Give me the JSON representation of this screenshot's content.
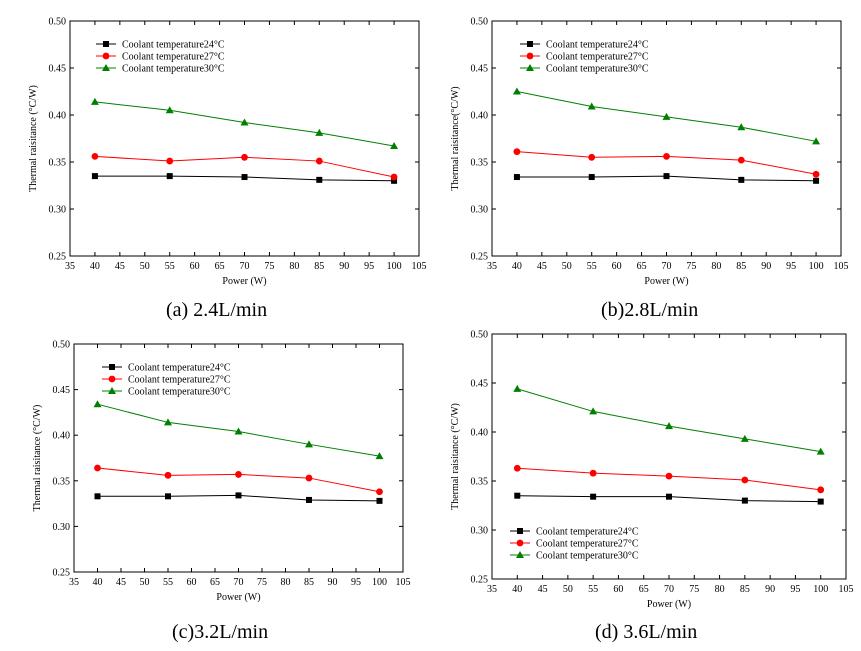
{
  "colors": {
    "series24": "#000000",
    "series27": "#ff0000",
    "series30": "#008000"
  },
  "chart_data": [
    {
      "type": "line",
      "caption": "(a) 2.4L/min",
      "xlabel": "Power (W)",
      "ylabel": "Thermal raisitance (°C/W)",
      "xlim": [
        35,
        105
      ],
      "ylim": [
        0.25,
        0.5
      ],
      "xticks": [
        35,
        40,
        45,
        50,
        55,
        60,
        65,
        70,
        75,
        80,
        85,
        90,
        95,
        100,
        105
      ],
      "yticks": [
        "0.25",
        "0.30",
        "0.35",
        "0.40",
        "0.45",
        "0.50"
      ],
      "grid": false,
      "legend": "top-left",
      "x": [
        40,
        55,
        70,
        85,
        100
      ],
      "series": [
        {
          "name": "Coolant temperature24°C",
          "marker": "square",
          "color": "#000000",
          "values": [
            0.335,
            0.335,
            0.334,
            0.331,
            0.33
          ]
        },
        {
          "name": "Coolant temperature27°C",
          "marker": "circle",
          "color": "#ff0000",
          "values": [
            0.356,
            0.351,
            0.355,
            0.351,
            0.334
          ]
        },
        {
          "name": "Coolant temperature30°C",
          "marker": "triangle",
          "color": "#008000",
          "values": [
            0.414,
            0.405,
            0.392,
            0.381,
            0.367
          ]
        }
      ]
    },
    {
      "type": "line",
      "caption": "(b)2.8L/min",
      "xlabel": "Power (W)",
      "ylabel": "Thermal raisitance(°C/W)",
      "xlim": [
        35,
        105
      ],
      "ylim": [
        0.25,
        0.5
      ],
      "xticks": [
        35,
        40,
        45,
        50,
        55,
        60,
        65,
        70,
        75,
        80,
        85,
        90,
        95,
        100,
        105
      ],
      "yticks": [
        "0.25",
        "0.30",
        "0.35",
        "0.40",
        "0.45",
        "0.50"
      ],
      "grid": false,
      "legend": "top-left",
      "x": [
        40,
        55,
        70,
        85,
        100
      ],
      "series": [
        {
          "name": "Coolant temperature24°C",
          "marker": "square",
          "color": "#000000",
          "values": [
            0.334,
            0.334,
            0.335,
            0.331,
            0.33
          ]
        },
        {
          "name": "Coolant temperature27°C",
          "marker": "circle",
          "color": "#ff0000",
          "values": [
            0.361,
            0.355,
            0.356,
            0.352,
            0.337
          ]
        },
        {
          "name": "Coolant temperature30°C",
          "marker": "triangle",
          "color": "#008000",
          "values": [
            0.425,
            0.409,
            0.398,
            0.387,
            0.372
          ]
        }
      ]
    },
    {
      "type": "line",
      "caption": "(c)3.2L/min",
      "xlabel": "Power (W)",
      "ylabel": "Thermal raisitance (°C/W)",
      "xlim": [
        35,
        105
      ],
      "ylim": [
        0.25,
        0.5
      ],
      "xticks": [
        35,
        40,
        45,
        50,
        55,
        60,
        65,
        70,
        75,
        80,
        85,
        90,
        95,
        100,
        105
      ],
      "yticks": [
        "0.25",
        "0.30",
        "0.35",
        "0.40",
        "0.45",
        "0.50"
      ],
      "grid": false,
      "legend": "top-left",
      "x": [
        40,
        55,
        70,
        85,
        100
      ],
      "series": [
        {
          "name": "Coolant temperature24°C",
          "marker": "square",
          "color": "#000000",
          "values": [
            0.333,
            0.333,
            0.334,
            0.329,
            0.328
          ]
        },
        {
          "name": "Coolant temperature27°C",
          "marker": "circle",
          "color": "#ff0000",
          "values": [
            0.364,
            0.356,
            0.357,
            0.353,
            0.338
          ]
        },
        {
          "name": "Coolant temperature30°C",
          "marker": "triangle",
          "color": "#008000",
          "values": [
            0.434,
            0.414,
            0.404,
            0.39,
            0.377
          ]
        }
      ]
    },
    {
      "type": "line",
      "caption": "(d) 3.6L/min",
      "xlabel": "Power (W)",
      "ylabel": "Thermal raisitance (°C/W)",
      "xlim": [
        35,
        105
      ],
      "ylim": [
        0.25,
        0.5
      ],
      "xticks": [
        35,
        40,
        45,
        50,
        55,
        60,
        65,
        70,
        75,
        80,
        85,
        90,
        95,
        100,
        105
      ],
      "yticks": [
        "0.25",
        "0.30",
        "0.35",
        "0.40",
        "0.45",
        "0.50"
      ],
      "grid": false,
      "legend": "bottom-left",
      "x": [
        40,
        55,
        70,
        85,
        100
      ],
      "series": [
        {
          "name": "Coolant temperature24°C",
          "marker": "square",
          "color": "#000000",
          "values": [
            0.335,
            0.334,
            0.334,
            0.33,
            0.329
          ]
        },
        {
          "name": "Coolant temperature27°C",
          "marker": "circle",
          "color": "#ff0000",
          "values": [
            0.363,
            0.358,
            0.355,
            0.351,
            0.341
          ]
        },
        {
          "name": "Coolant temperature30°C",
          "marker": "triangle",
          "color": "#008000",
          "values": [
            0.444,
            0.421,
            0.406,
            0.393,
            0.38
          ]
        }
      ]
    }
  ]
}
